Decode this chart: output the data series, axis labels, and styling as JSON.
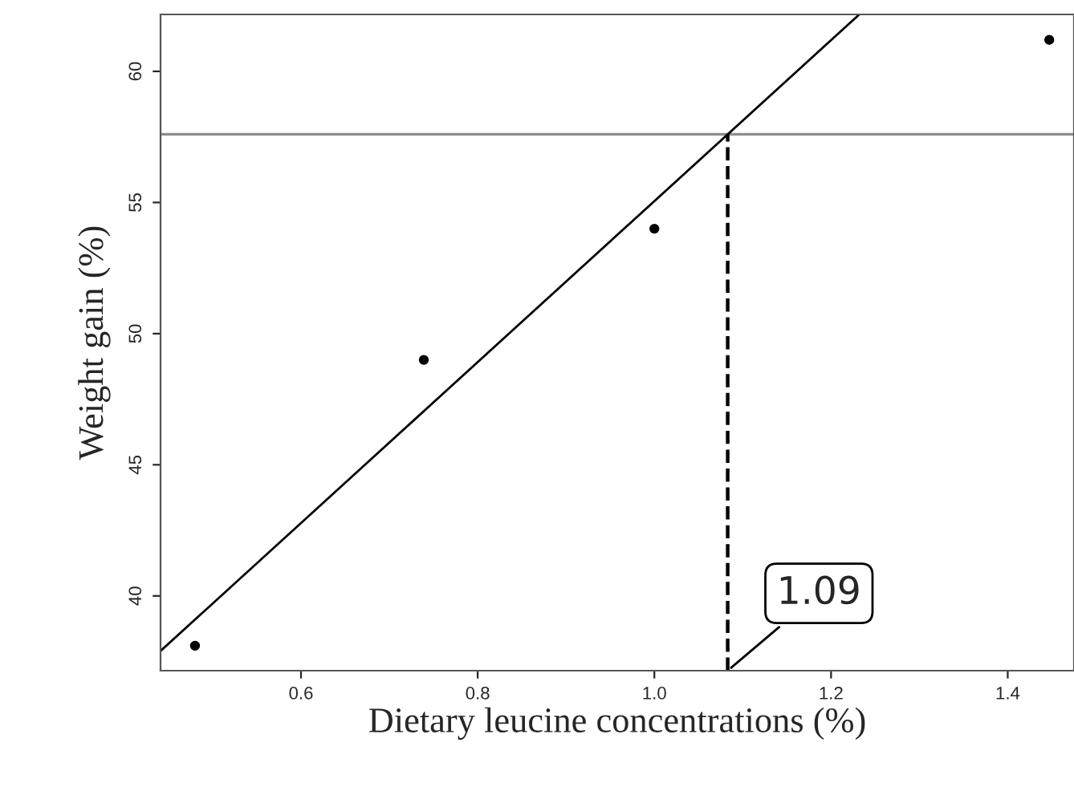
{
  "chart_data": {
    "type": "scatter",
    "xlabel": "Dietary leucine concentrations (%)",
    "ylabel": "Weight gain (%)",
    "series": [
      {
        "color": "#000000",
        "marker": "circle",
        "x": [
          0.48,
          0.739,
          1.0,
          1.447
        ],
        "values": [
          38.1,
          49.0,
          54.0,
          61.2
        ]
      },
      {
        "type": "line",
        "color": "#000000",
        "x": [
          0.441,
          1.232
        ],
        "values": [
          37.9,
          62.17
        ],
        "line_style": "solid"
      },
      {
        "type": "line",
        "color": "#000000",
        "x": [
          1.083,
          1.083
        ],
        "values": [
          37.15,
          57.6
        ],
        "line_style": "dashed"
      }
    ],
    "ref_lines": [
      {
        "axis": "y",
        "value": 57.6,
        "color": "#8c8c8c"
      }
    ],
    "annotations": [
      {
        "text": "1.09",
        "x": 1.083,
        "y": 37.15
      }
    ],
    "xlim": [
      0.441,
      1.475
    ],
    "ylim": [
      37.15,
      62.17
    ],
    "xticks": [
      {
        "value": 0.6,
        "label": "0.6"
      },
      {
        "value": 0.8,
        "label": "0.8"
      },
      {
        "value": 1.0,
        "label": "1.0"
      },
      {
        "value": 1.2,
        "label": "1.2"
      },
      {
        "value": 1.4,
        "label": "1.4"
      }
    ],
    "yticks": [
      40,
      45,
      50,
      55,
      60
    ],
    "grid": false,
    "legend": false
  }
}
